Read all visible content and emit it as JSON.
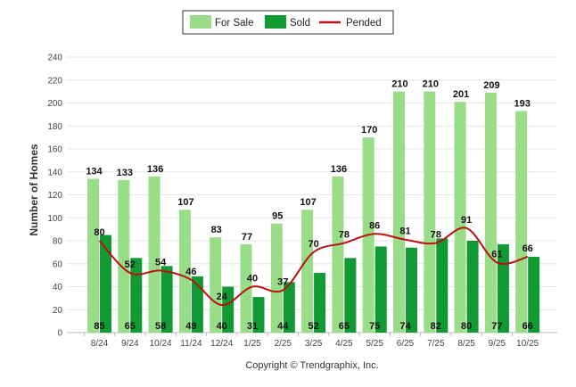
{
  "chart_data": {
    "type": "bar",
    "title": "",
    "xlabel": "",
    "ylabel": "Number of Homes",
    "ylim": [
      0,
      240
    ],
    "yticks": [
      0,
      20,
      40,
      60,
      80,
      100,
      120,
      140,
      160,
      180,
      200,
      220,
      240
    ],
    "grid": true,
    "legend_position": "top-center",
    "categories": [
      "8/24",
      "9/24",
      "10/24",
      "11/24",
      "12/24",
      "1/25",
      "2/25",
      "3/25",
      "4/25",
      "5/25",
      "6/25",
      "7/25",
      "8/25",
      "9/25",
      "10/25"
    ],
    "series": [
      {
        "name": "For Sale",
        "type": "bar",
        "color": "#99dd88",
        "values": [
          134,
          133,
          136,
          107,
          83,
          77,
          95,
          107,
          136,
          170,
          210,
          210,
          201,
          209,
          193
        ]
      },
      {
        "name": "Sold",
        "type": "bar",
        "color": "#119933",
        "values": [
          85,
          65,
          58,
          49,
          40,
          31,
          44,
          52,
          65,
          75,
          74,
          82,
          80,
          77,
          66
        ]
      },
      {
        "name": "Pended",
        "type": "line",
        "color": "#bb1111",
        "values": [
          80,
          52,
          54,
          46,
          24,
          40,
          37,
          70,
          78,
          86,
          81,
          78,
          91,
          61,
          66
        ]
      }
    ]
  },
  "footer": {
    "copyright": "Copyright © Trendgraphix, Inc."
  }
}
